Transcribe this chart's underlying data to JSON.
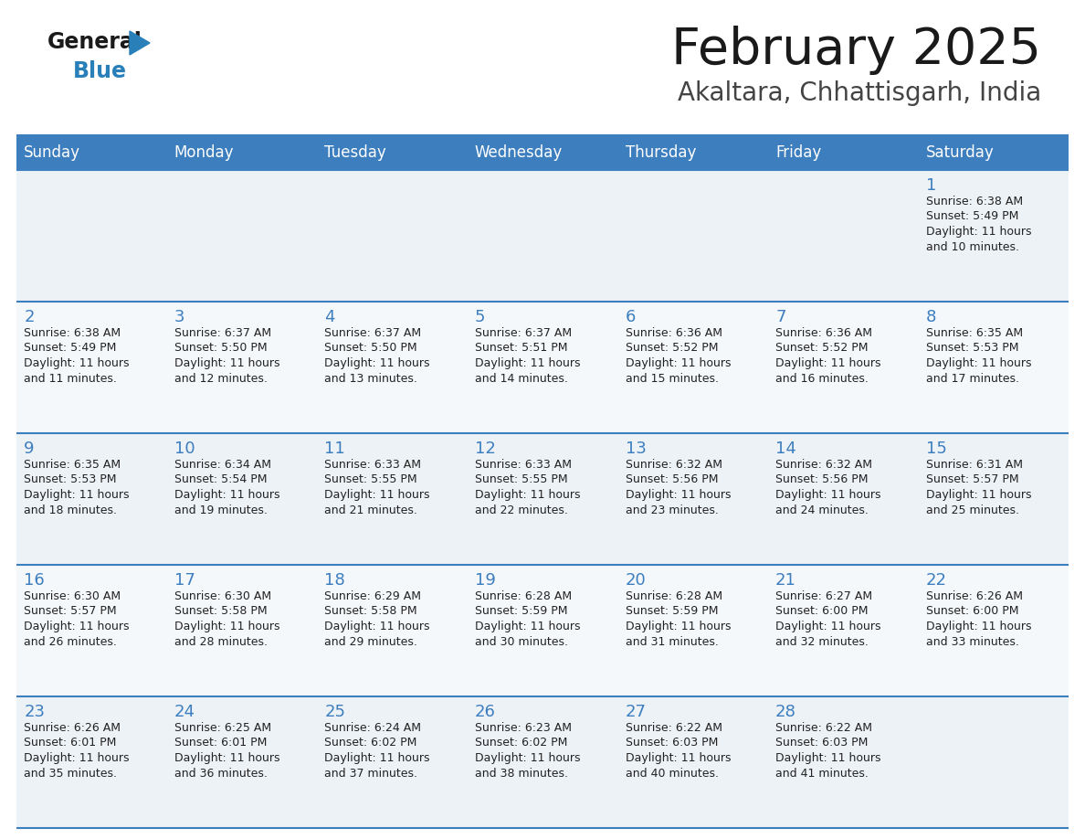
{
  "title": "February 2025",
  "subtitle": "Akaltara, Chhattisgarh, India",
  "header_color": "#3d7ebf",
  "header_text_color": "#ffffff",
  "cell_bg_even": "#edf2f7",
  "cell_bg_odd": "#f5f8fb",
  "cell_text_color": "#222222",
  "day_number_color": "#3d7ebf",
  "info_text_color": "#222222",
  "line_color": "#3d7ebf",
  "days_of_week": [
    "Sunday",
    "Monday",
    "Tuesday",
    "Wednesday",
    "Thursday",
    "Friday",
    "Saturday"
  ],
  "weeks": [
    [
      {
        "day": "",
        "sunrise": "",
        "sunset": "",
        "daylight_h": "",
        "daylight_m": ""
      },
      {
        "day": "",
        "sunrise": "",
        "sunset": "",
        "daylight_h": "",
        "daylight_m": ""
      },
      {
        "day": "",
        "sunrise": "",
        "sunset": "",
        "daylight_h": "",
        "daylight_m": ""
      },
      {
        "day": "",
        "sunrise": "",
        "sunset": "",
        "daylight_h": "",
        "daylight_m": ""
      },
      {
        "day": "",
        "sunrise": "",
        "sunset": "",
        "daylight_h": "",
        "daylight_m": ""
      },
      {
        "day": "",
        "sunrise": "",
        "sunset": "",
        "daylight_h": "",
        "daylight_m": ""
      },
      {
        "day": "1",
        "sunrise": "6:38 AM",
        "sunset": "5:49 PM",
        "daylight_h": "11 hours",
        "daylight_m": "and 10 minutes."
      }
    ],
    [
      {
        "day": "2",
        "sunrise": "6:38 AM",
        "sunset": "5:49 PM",
        "daylight_h": "11 hours",
        "daylight_m": "and 11 minutes."
      },
      {
        "day": "3",
        "sunrise": "6:37 AM",
        "sunset": "5:50 PM",
        "daylight_h": "11 hours",
        "daylight_m": "and 12 minutes."
      },
      {
        "day": "4",
        "sunrise": "6:37 AM",
        "sunset": "5:50 PM",
        "daylight_h": "11 hours",
        "daylight_m": "and 13 minutes."
      },
      {
        "day": "5",
        "sunrise": "6:37 AM",
        "sunset": "5:51 PM",
        "daylight_h": "11 hours",
        "daylight_m": "and 14 minutes."
      },
      {
        "day": "6",
        "sunrise": "6:36 AM",
        "sunset": "5:52 PM",
        "daylight_h": "11 hours",
        "daylight_m": "and 15 minutes."
      },
      {
        "day": "7",
        "sunrise": "6:36 AM",
        "sunset": "5:52 PM",
        "daylight_h": "11 hours",
        "daylight_m": "and 16 minutes."
      },
      {
        "day": "8",
        "sunrise": "6:35 AM",
        "sunset": "5:53 PM",
        "daylight_h": "11 hours",
        "daylight_m": "and 17 minutes."
      }
    ],
    [
      {
        "day": "9",
        "sunrise": "6:35 AM",
        "sunset": "5:53 PM",
        "daylight_h": "11 hours",
        "daylight_m": "and 18 minutes."
      },
      {
        "day": "10",
        "sunrise": "6:34 AM",
        "sunset": "5:54 PM",
        "daylight_h": "11 hours",
        "daylight_m": "and 19 minutes."
      },
      {
        "day": "11",
        "sunrise": "6:33 AM",
        "sunset": "5:55 PM",
        "daylight_h": "11 hours",
        "daylight_m": "and 21 minutes."
      },
      {
        "day": "12",
        "sunrise": "6:33 AM",
        "sunset": "5:55 PM",
        "daylight_h": "11 hours",
        "daylight_m": "and 22 minutes."
      },
      {
        "day": "13",
        "sunrise": "6:32 AM",
        "sunset": "5:56 PM",
        "daylight_h": "11 hours",
        "daylight_m": "and 23 minutes."
      },
      {
        "day": "14",
        "sunrise": "6:32 AM",
        "sunset": "5:56 PM",
        "daylight_h": "11 hours",
        "daylight_m": "and 24 minutes."
      },
      {
        "day": "15",
        "sunrise": "6:31 AM",
        "sunset": "5:57 PM",
        "daylight_h": "11 hours",
        "daylight_m": "and 25 minutes."
      }
    ],
    [
      {
        "day": "16",
        "sunrise": "6:30 AM",
        "sunset": "5:57 PM",
        "daylight_h": "11 hours",
        "daylight_m": "and 26 minutes."
      },
      {
        "day": "17",
        "sunrise": "6:30 AM",
        "sunset": "5:58 PM",
        "daylight_h": "11 hours",
        "daylight_m": "and 28 minutes."
      },
      {
        "day": "18",
        "sunrise": "6:29 AM",
        "sunset": "5:58 PM",
        "daylight_h": "11 hours",
        "daylight_m": "and 29 minutes."
      },
      {
        "day": "19",
        "sunrise": "6:28 AM",
        "sunset": "5:59 PM",
        "daylight_h": "11 hours",
        "daylight_m": "and 30 minutes."
      },
      {
        "day": "20",
        "sunrise": "6:28 AM",
        "sunset": "5:59 PM",
        "daylight_h": "11 hours",
        "daylight_m": "and 31 minutes."
      },
      {
        "day": "21",
        "sunrise": "6:27 AM",
        "sunset": "6:00 PM",
        "daylight_h": "11 hours",
        "daylight_m": "and 32 minutes."
      },
      {
        "day": "22",
        "sunrise": "6:26 AM",
        "sunset": "6:00 PM",
        "daylight_h": "11 hours",
        "daylight_m": "and 33 minutes."
      }
    ],
    [
      {
        "day": "23",
        "sunrise": "6:26 AM",
        "sunset": "6:01 PM",
        "daylight_h": "11 hours",
        "daylight_m": "and 35 minutes."
      },
      {
        "day": "24",
        "sunrise": "6:25 AM",
        "sunset": "6:01 PM",
        "daylight_h": "11 hours",
        "daylight_m": "and 36 minutes."
      },
      {
        "day": "25",
        "sunrise": "6:24 AM",
        "sunset": "6:02 PM",
        "daylight_h": "11 hours",
        "daylight_m": "and 37 minutes."
      },
      {
        "day": "26",
        "sunrise": "6:23 AM",
        "sunset": "6:02 PM",
        "daylight_h": "11 hours",
        "daylight_m": "and 38 minutes."
      },
      {
        "day": "27",
        "sunrise": "6:22 AM",
        "sunset": "6:03 PM",
        "daylight_h": "11 hours",
        "daylight_m": "and 40 minutes."
      },
      {
        "day": "28",
        "sunrise": "6:22 AM",
        "sunset": "6:03 PM",
        "daylight_h": "11 hours",
        "daylight_m": "and 41 minutes."
      },
      {
        "day": "",
        "sunrise": "",
        "sunset": "",
        "daylight_h": "",
        "daylight_m": ""
      }
    ]
  ]
}
